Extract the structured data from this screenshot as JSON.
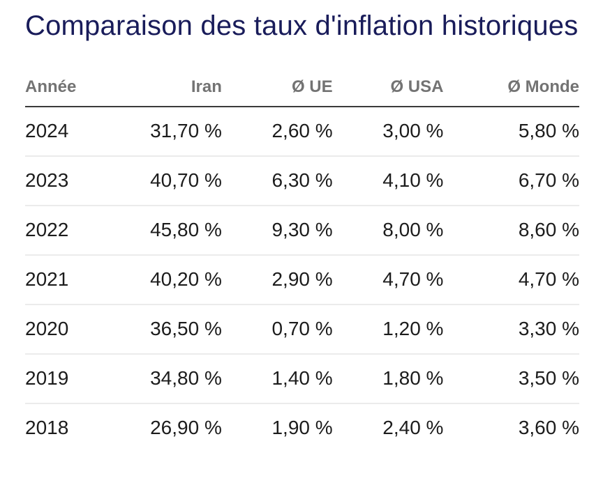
{
  "title": "Comparaison des taux d'inflation historiques",
  "colors": {
    "background": "#ffffff",
    "title_text": "#191c5a",
    "header_text": "#737373",
    "header_border": "#3a3a3a",
    "row_divider": "#ebebeb",
    "cell_text": "#1c1c1c"
  },
  "table": {
    "columns": [
      "Année",
      "Iran",
      "Ø UE",
      "Ø USA",
      "Ø Monde"
    ],
    "rows": [
      {
        "cells": [
          "2024",
          "31,70 %",
          "2,60 %",
          "3,00 %",
          "5,80 %"
        ]
      },
      {
        "cells": [
          "2023",
          "40,70 %",
          "6,30 %",
          "4,10 %",
          "6,70 %"
        ]
      },
      {
        "cells": [
          "2022",
          "45,80 %",
          "9,30 %",
          "8,00 %",
          "8,60 %"
        ]
      },
      {
        "cells": [
          "2021",
          "40,20 %",
          "2,90 %",
          "4,70 %",
          "4,70 %"
        ]
      },
      {
        "cells": [
          "2020",
          "36,50 %",
          "0,70 %",
          "1,20 %",
          "3,30 %"
        ]
      },
      {
        "cells": [
          "2019",
          "34,80 %",
          "1,40 %",
          "1,80 %",
          "3,50 %"
        ]
      },
      {
        "cells": [
          "2018",
          "26,90 %",
          "1,90 %",
          "2,40 %",
          "3,60 %"
        ]
      }
    ]
  },
  "chart_data": {
    "type": "table",
    "title": "Comparaison des taux d'inflation historiques",
    "unit": "%",
    "categories": [
      "2024",
      "2023",
      "2022",
      "2021",
      "2020",
      "2019",
      "2018"
    ],
    "series": [
      {
        "name": "Iran",
        "values": [
          31.7,
          40.7,
          45.8,
          40.2,
          36.5,
          34.8,
          26.9
        ]
      },
      {
        "name": "Ø UE",
        "values": [
          2.6,
          6.3,
          9.3,
          2.9,
          0.7,
          1.4,
          1.9
        ]
      },
      {
        "name": "Ø USA",
        "values": [
          3.0,
          4.1,
          8.0,
          4.7,
          1.2,
          1.8,
          2.4
        ]
      },
      {
        "name": "Ø Monde",
        "values": [
          5.8,
          6.7,
          8.6,
          4.7,
          3.3,
          3.5,
          3.6
        ]
      }
    ],
    "legend_position": "none",
    "grid": "horizontal-row-dividers"
  }
}
